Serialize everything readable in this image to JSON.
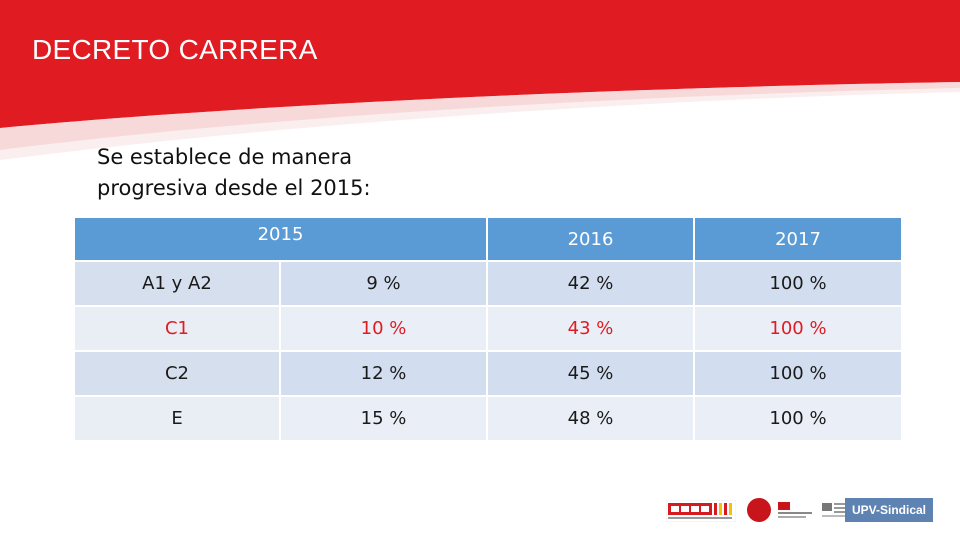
{
  "header": {
    "title": "DECRETO CARRERA"
  },
  "intro": {
    "line1": "Se establece de manera",
    "line2": "progresiva desde el 2015:"
  },
  "table": {
    "headers": [
      "2015",
      "2016",
      "2017"
    ],
    "rows": [
      {
        "group": "A1 y A2",
        "v2015": "9 %",
        "v2016": "42 %",
        "v2017": "100 %"
      },
      {
        "group": "C1",
        "v2015": "10 %",
        "v2016": "43 %",
        "v2017": "100 %"
      },
      {
        "group": "C2",
        "v2015": "12 %",
        "v2016": "45 %",
        "v2017": "100 %"
      },
      {
        "group": "E",
        "v2015": "15 %",
        "v2016": "48 %",
        "v2017": "100 %"
      }
    ]
  },
  "footer": {
    "upv_label": "UPV-Sindical"
  },
  "colors": {
    "banner_red": "#e11b22",
    "header_blue": "#5b9bd5",
    "highlight_red": "#e11b22"
  }
}
